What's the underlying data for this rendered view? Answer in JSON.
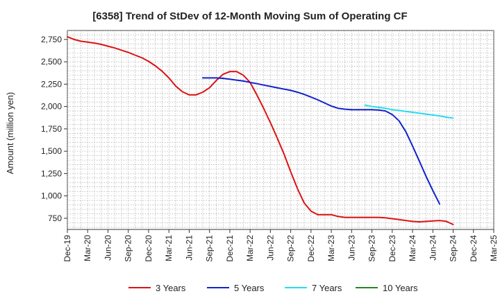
{
  "chart_data": {
    "type": "line",
    "title": "[6358]  Trend of StDev of 12-Month Moving Sum of Operating CF",
    "xlabel": "",
    "ylabel": "Amount (million yen)",
    "ylim": [
      625,
      2850
    ],
    "yticks": [
      750,
      1000,
      1250,
      1500,
      1750,
      2000,
      2250,
      2500,
      2750
    ],
    "ytick_labels": [
      "750",
      "1,000",
      "1,250",
      "1,500",
      "1,750",
      "2,000",
      "2,250",
      "2,500",
      "2,750"
    ],
    "xticks": [
      "Dec-19",
      "Mar-20",
      "Jun-20",
      "Sep-20",
      "Dec-20",
      "Mar-21",
      "Jun-21",
      "Sep-21",
      "Dec-21",
      "Mar-22",
      "Jun-22",
      "Sep-22",
      "Dec-22",
      "Mar-23",
      "Jun-23",
      "Sep-23",
      "Dec-23",
      "Mar-24",
      "Jun-24",
      "Sep-24",
      "Dec-24",
      "Mar-25"
    ],
    "grid": true,
    "legend_position": "bottom",
    "series": [
      {
        "name": "3 Years",
        "color": "#dd1111",
        "x": [
          "Dec-19",
          "Jan-20",
          "Feb-20",
          "Mar-20",
          "Apr-20",
          "May-20",
          "Jun-20",
          "Jul-20",
          "Aug-20",
          "Sep-20",
          "Oct-20",
          "Nov-20",
          "Dec-20",
          "Jan-21",
          "Feb-21",
          "Mar-21",
          "Apr-21",
          "May-21",
          "Jun-21",
          "Jul-21",
          "Aug-21",
          "Sep-21",
          "Oct-21",
          "Nov-21",
          "Dec-21",
          "Jan-22",
          "Feb-22",
          "Mar-22",
          "Apr-22",
          "May-22",
          "Jun-22",
          "Jul-22",
          "Aug-22",
          "Sep-22",
          "Oct-22",
          "Nov-22",
          "Dec-22",
          "Jan-23",
          "Feb-23",
          "Mar-23",
          "Apr-23",
          "May-23",
          "Jun-23",
          "Jul-23",
          "Aug-23",
          "Sep-23",
          "Oct-23",
          "Nov-23",
          "Dec-23",
          "Jan-24",
          "Feb-24",
          "Mar-24",
          "Apr-24",
          "May-24",
          "Jun-24",
          "Jul-24",
          "Aug-24",
          "Sep-24"
        ],
        "values": [
          2780,
          2750,
          2730,
          2720,
          2710,
          2695,
          2675,
          2655,
          2630,
          2605,
          2575,
          2545,
          2505,
          2455,
          2395,
          2320,
          2230,
          2165,
          2130,
          2130,
          2160,
          2210,
          2290,
          2360,
          2390,
          2390,
          2350,
          2270,
          2130,
          1980,
          1820,
          1650,
          1470,
          1270,
          1080,
          920,
          830,
          790,
          790,
          790,
          770,
          760,
          760,
          760,
          760,
          760,
          760,
          755,
          745,
          735,
          725,
          715,
          710,
          715,
          720,
          725,
          715,
          680
        ]
      },
      {
        "name": "5 Years",
        "color": "#1122cc",
        "x": [
          "Dec-20",
          "Jan-21",
          "Feb-21",
          "Mar-21",
          "Apr-21",
          "May-21",
          "Jun-21",
          "Jul-21",
          "Aug-21",
          "Sep-21",
          "Oct-21",
          "Nov-21",
          "Dec-21",
          "Jan-22",
          "Feb-22",
          "Mar-22",
          "Apr-22",
          "May-22",
          "Jun-22",
          "Jul-22",
          "Aug-22",
          "Sep-22",
          "Oct-22",
          "Nov-22",
          "Dec-22",
          "Jan-23",
          "Feb-23",
          "Mar-23",
          "Apr-23",
          "May-23",
          "Jun-23",
          "Jul-23",
          "Aug-23",
          "Sep-23",
          "Oct-23",
          "Nov-23",
          "Dec-23",
          "Jan-24",
          "Feb-24",
          "Mar-24",
          "Apr-24",
          "May-24",
          "Jun-24",
          "Jul-24",
          "Aug-24",
          "Sep-24"
        ],
        "values": [
          null,
          null,
          null,
          null,
          null,
          null,
          null,
          null,
          2320,
          2320,
          2320,
          2315,
          2305,
          2295,
          2285,
          2270,
          2255,
          2240,
          2225,
          2210,
          2195,
          2180,
          2160,
          2135,
          2105,
          2075,
          2040,
          2005,
          1980,
          1970,
          1965,
          1965,
          1965,
          1965,
          1960,
          1950,
          1910,
          1840,
          1720,
          1560,
          1390,
          1220,
          1060,
          910,
          null,
          null
        ],
        "x_offset_index": 0
      },
      {
        "name": "7 Years",
        "color": "#22ddee",
        "x": [
          "Aug-23",
          "Sep-23",
          "Oct-23",
          "Nov-23",
          "Dec-23",
          "Jan-24",
          "Feb-24",
          "Mar-24",
          "Apr-24",
          "May-24",
          "Jun-24",
          "Jul-24",
          "Aug-24",
          "Sep-24"
        ],
        "values": [
          2015,
          2000,
          1990,
          1980,
          1965,
          1955,
          1945,
          1935,
          1925,
          1915,
          1905,
          1895,
          1880,
          1870
        ]
      },
      {
        "name": "10 Years",
        "color": "#228822",
        "x": [],
        "values": []
      }
    ]
  }
}
